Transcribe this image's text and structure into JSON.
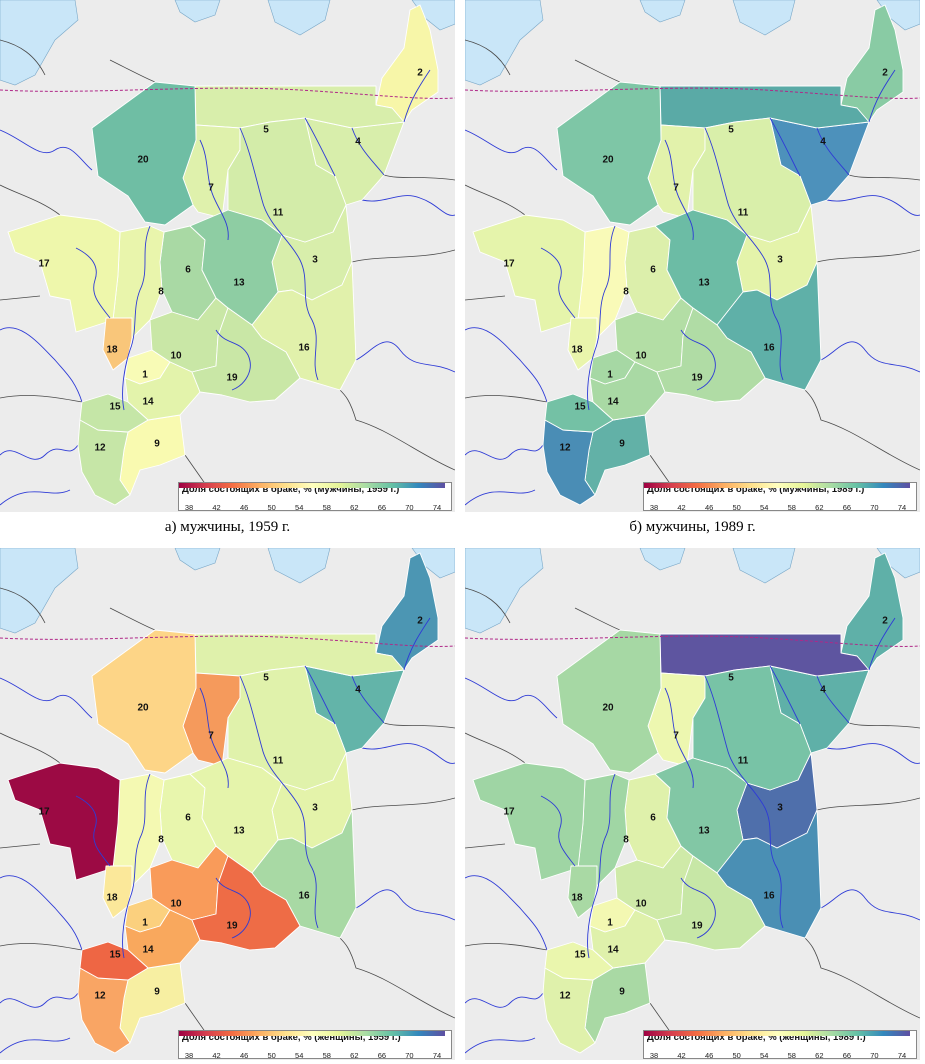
{
  "panels": [
    {
      "caption": "а) мужчины, 1959 г.",
      "legend_title": "Доля состоящих в браке, % (мужчины, 1959 г.)",
      "fills": {
        "1": "#f8fbb6",
        "2": "#f7f6a8",
        "3": "#d8eeab",
        "4": "#d8eeab",
        "5": "#d8eeab",
        "6": "#a9d9a4",
        "7": "#dff1ac",
        "8": "#e9f5ac",
        "9": "#f9fab0",
        "10": "#c9e7a6",
        "11": "#d3eca9",
        "12": "#c6e6a7",
        "13": "#8ecda3",
        "14": "#e3f3ab",
        "15": "#c5e6a7",
        "16": "#e1f1ab",
        "17": "#eef7ab",
        "18": "#f9c67a",
        "19": "#c9e7a6",
        "20": "#6fbea4"
      }
    },
    {
      "caption": "б) мужчины, 1989 г.",
      "legend_title": "Доля состоящих в браке, % (мужчины, 1989 г.)",
      "fills": {
        "1": "#a6d8a4",
        "2": "#89cba4",
        "3": "#e4f3aa",
        "4": "#4d91bb",
        "5": "#5aaaa6",
        "6": "#dcefab",
        "7": "#e2f2ab",
        "8": "#f9fab8",
        "9": "#62b1a7",
        "10": "#b3dea5",
        "11": "#d9efaa",
        "12": "#4a8db5",
        "13": "#6cbca5",
        "14": "#a9d9a4",
        "15": "#74c1a5",
        "16": "#5fb0a8",
        "17": "#e5f4ab",
        "18": "#e9f5ac",
        "19": "#b0dca5",
        "20": "#7ec6a6"
      }
    },
    {
      "caption": "",
      "legend_title": "Доля состоящих в браке, % (женщины, 1959 г.)",
      "fills": {
        "1": "#fbd07e",
        "2": "#4c96b3",
        "3": "#e4f3aa",
        "4": "#63b4a9",
        "5": "#dff1ab",
        "6": "#e8f6ad",
        "7": "#f59a5c",
        "8": "#f4f9b2",
        "9": "#f7efa2",
        "10": "#f99b5a",
        "11": "#e0f2ab",
        "12": "#f9a564",
        "13": "#e5f4ab",
        "14": "#f9a85d",
        "15": "#ee6644",
        "16": "#a8d9a4",
        "17": "#9c0a44",
        "18": "#fbe89a",
        "19": "#ee6c46",
        "20": "#fdd587"
      }
    },
    {
      "caption": "",
      "legend_title": "Доля состоящих в браке, % (женщины, 1989 г.)",
      "fills": {
        "1": "#f3f8b2",
        "2": "#5fb0a8",
        "3": "#4f6fab",
        "4": "#5fb0a8",
        "5": "#5e55a0",
        "6": "#dff1ab",
        "7": "#edf7b0",
        "8": "#a0d6a4",
        "9": "#a9d9a4",
        "10": "#cfeaa8",
        "11": "#78c3a6",
        "12": "#dff1ab",
        "13": "#82c7a5",
        "14": "#dff1ab",
        "15": "#eaf6ad",
        "16": "#4a8fb4",
        "17": "#9fd5a4",
        "18": "#a9d9a4",
        "19": "#c7e7a6",
        "20": "#a6d8a4"
      }
    }
  ],
  "legend_ticks": [
    "38",
    "42",
    "46",
    "50",
    "54",
    "58",
    "62",
    "66",
    "70",
    "74"
  ],
  "region_labels": [
    "1",
    "2",
    "3",
    "4",
    "5",
    "6",
    "7",
    "8",
    "9",
    "10",
    "11",
    "12",
    "13",
    "14",
    "15",
    "16",
    "17",
    "18",
    "19",
    "20"
  ],
  "colors": {
    "water": "#c9e6f8",
    "land": "#ececec",
    "river": "#2e3bd6",
    "border": "#4a4a4a",
    "arctic_circle": "#b02888"
  },
  "ramp": [
    "#9e0142",
    "#d53e4f",
    "#f46d43",
    "#fdae61",
    "#fee08b",
    "#ffffbf",
    "#e6f598",
    "#abdda4",
    "#66c2a5",
    "#3288bd",
    "#5e4fa2"
  ]
}
